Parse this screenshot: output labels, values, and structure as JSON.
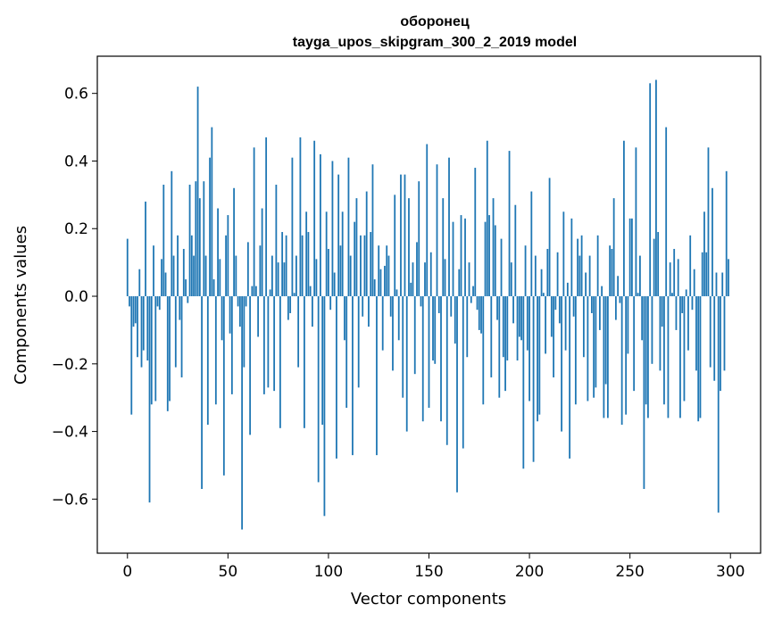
{
  "chart_data": {
    "type": "bar",
    "title": "оборонец",
    "subtitle": "tayga_upos_skipgram_300_2_2019 model",
    "xlabel": "Vector components",
    "ylabel": "Components values",
    "xlim": [
      -15,
      315
    ],
    "ylim": [
      -0.76,
      0.71
    ],
    "xticks": [
      0,
      50,
      100,
      150,
      200,
      250,
      300
    ],
    "yticks": [
      -0.6,
      -0.4,
      -0.2,
      0.0,
      0.2,
      0.4,
      0.6
    ],
    "ytick_labels": [
      "−0.6",
      "−0.4",
      "−0.2",
      "0.0",
      "0.2",
      "0.4",
      "0.6"
    ],
    "bar_color": "#1f77b4",
    "grid": false,
    "values": [
      0.17,
      -0.03,
      -0.35,
      -0.09,
      -0.08,
      -0.18,
      0.08,
      -0.21,
      -0.16,
      0.28,
      -0.19,
      -0.61,
      -0.32,
      0.15,
      -0.31,
      -0.03,
      -0.04,
      0.11,
      0.33,
      0.07,
      -0.34,
      -0.31,
      0.37,
      0.12,
      -0.21,
      0.18,
      -0.07,
      -0.24,
      0.14,
      0.05,
      -0.02,
      0.33,
      0.18,
      0.12,
      0.34,
      0.62,
      0.29,
      -0.57,
      0.34,
      0.12,
      -0.38,
      0.41,
      0.5,
      0.05,
      -0.32,
      0.26,
      0.11,
      -0.13,
      -0.53,
      0.18,
      0.24,
      -0.11,
      -0.29,
      0.32,
      0.12,
      -0.03,
      -0.09,
      -0.69,
      -0.21,
      -0.03,
      0.16,
      -0.41,
      0.03,
      0.44,
      0.03,
      -0.12,
      0.15,
      0.26,
      -0.29,
      0.47,
      -0.27,
      0.02,
      0.12,
      -0.28,
      0.33,
      0.1,
      -0.39,
      0.19,
      0.1,
      0.18,
      -0.07,
      -0.05,
      0.41,
      0.01,
      0.12,
      -0.21,
      0.47,
      0.18,
      -0.39,
      0.25,
      0.19,
      0.03,
      -0.09,
      0.46,
      0.11,
      -0.55,
      0.42,
      -0.38,
      -0.65,
      0.25,
      0.14,
      -0.04,
      0.4,
      0.07,
      -0.48,
      0.36,
      0.15,
      0.25,
      -0.13,
      -0.33,
      0.41,
      0.12,
      -0.47,
      0.22,
      0.29,
      -0.27,
      0.18,
      -0.06,
      0.18,
      0.31,
      -0.09,
      0.19,
      0.39,
      0.05,
      -0.47,
      0.15,
      0.08,
      -0.16,
      0.09,
      0.15,
      0.12,
      -0.06,
      -0.22,
      0.3,
      0.02,
      -0.13,
      0.36,
      -0.3,
      0.36,
      -0.4,
      0.29,
      0.04,
      0.1,
      -0.23,
      0.16,
      0.34,
      -0.03,
      -0.37,
      0.1,
      0.45,
      -0.33,
      0.13,
      -0.19,
      -0.2,
      0.39,
      -0.05,
      -0.37,
      0.29,
      0.11,
      -0.44,
      0.41,
      -0.06,
      0.22,
      -0.14,
      -0.58,
      0.08,
      0.24,
      -0.45,
      0.23,
      -0.18,
      0.1,
      -0.02,
      0.03,
      0.38,
      -0.04,
      -0.1,
      -0.11,
      -0.32,
      0.22,
      0.46,
      0.24,
      -0.24,
      0.29,
      0.21,
      -0.07,
      -0.3,
      0.17,
      -0.18,
      -0.28,
      -0.19,
      0.43,
      0.1,
      -0.08,
      0.27,
      -0.19,
      -0.12,
      -0.13,
      -0.51,
      0.15,
      -0.16,
      -0.31,
      0.31,
      -0.49,
      0.12,
      -0.37,
      -0.35,
      0.08,
      0.01,
      -0.17,
      0.14,
      0.35,
      -0.12,
      -0.24,
      -0.04,
      0.13,
      -0.08,
      -0.4,
      0.25,
      -0.16,
      0.04,
      -0.48,
      0.23,
      -0.06,
      -0.32,
      0.17,
      0.12,
      0.18,
      -0.18,
      0.07,
      -0.31,
      0.12,
      -0.05,
      -0.3,
      -0.27,
      0.18,
      -0.1,
      0.03,
      -0.36,
      -0.26,
      -0.36,
      0.15,
      0.14,
      0.29,
      -0.07,
      0.06,
      -0.02,
      -0.38,
      0.46,
      -0.35,
      -0.17,
      0.23,
      0.23,
      -0.28,
      0.44,
      0.01,
      0.12,
      -0.13,
      -0.57,
      -0.32,
      -0.36,
      0.63,
      -0.2,
      0.17,
      0.64,
      0.19,
      -0.22,
      -0.09,
      -0.32,
      0.5,
      -0.36,
      0.1,
      0.01,
      0.14,
      -0.1,
      0.11,
      -0.36,
      -0.05,
      -0.31,
      0.02,
      -0.16,
      0.18,
      -0.04,
      0.08,
      -0.22,
      -0.37,
      -0.36,
      0.13,
      0.25,
      0.13,
      0.44,
      -0.21,
      0.32,
      -0.25,
      0.07,
      -0.64,
      -0.28,
      0.07,
      -0.22,
      0.37,
      0.11
    ]
  }
}
